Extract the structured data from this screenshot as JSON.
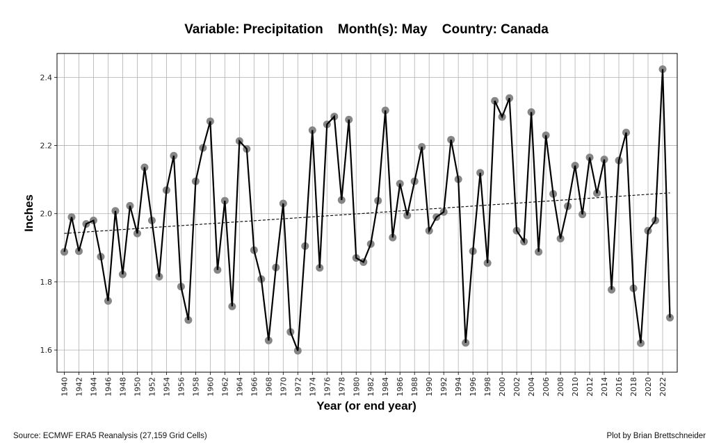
{
  "chart_data": {
    "type": "line",
    "title": "Variable: Precipitation    Month(s): May    Country: Canada",
    "xlabel": "Year (or end year)",
    "ylabel": "Inches",
    "xlim": [
      1939.0,
      2024.0
    ],
    "ylim": [
      1.535,
      2.47
    ],
    "grid": true,
    "legend": "none",
    "x_ticks": [
      1940,
      1942,
      1944,
      1946,
      1948,
      1950,
      1952,
      1954,
      1956,
      1958,
      1960,
      1962,
      1964,
      1966,
      1968,
      1970,
      1972,
      1974,
      1976,
      1978,
      1980,
      1982,
      1984,
      1986,
      1988,
      1990,
      1992,
      1994,
      1996,
      1998,
      2000,
      2002,
      2004,
      2006,
      2008,
      2010,
      2012,
      2014,
      2016,
      2018,
      2020,
      2022
    ],
    "x_tick_labels": [
      "1940",
      "1942",
      "1944",
      "1946",
      "1948",
      "1950",
      "1952",
      "1954",
      "1956",
      "1958",
      "1960",
      "1962",
      "1964",
      "1966",
      "1968",
      "1970",
      "1972",
      "1974",
      "1976",
      "1978",
      "1980",
      "1982",
      "1984",
      "1986",
      "1988",
      "1990",
      "1992",
      "1994",
      "1996",
      "1998",
      "2000",
      "2002",
      "2004",
      "2006",
      "2008",
      "2010",
      "2012",
      "2014",
      "2016",
      "2018",
      "2020",
      "2022"
    ],
    "y_ticks": [
      1.6,
      1.8,
      2.0,
      2.2,
      2.4
    ],
    "y_tick_labels": [
      "1.6",
      "1.8",
      "2.0",
      "2.2",
      "2.4"
    ],
    "x": [
      1940,
      1941,
      1942,
      1943,
      1944,
      1945,
      1946,
      1947,
      1948,
      1949,
      1950,
      1951,
      1952,
      1953,
      1954,
      1955,
      1956,
      1957,
      1958,
      1959,
      1960,
      1961,
      1962,
      1963,
      1964,
      1965,
      1966,
      1967,
      1968,
      1969,
      1970,
      1971,
      1972,
      1973,
      1974,
      1975,
      1976,
      1977,
      1978,
      1979,
      1980,
      1981,
      1982,
      1983,
      1984,
      1985,
      1986,
      1987,
      1988,
      1989,
      1990,
      1991,
      1992,
      1993,
      1994,
      1995,
      1996,
      1997,
      1998,
      1999,
      2000,
      2001,
      2002,
      2003,
      2004,
      2005,
      2006,
      2007,
      2008,
      2009,
      2010,
      2011,
      2012,
      2013,
      2014,
      2015,
      2016,
      2017,
      2018,
      2019,
      2020,
      2021,
      2022,
      2023
    ],
    "series": [
      {
        "name": "May Precipitation",
        "color": "#000000",
        "marker_color": "#808080",
        "values": [
          1.888,
          1.99,
          1.89,
          1.97,
          1.98,
          1.874,
          1.744,
          2.008,
          1.822,
          2.023,
          1.942,
          2.136,
          1.98,
          1.815,
          2.069,
          2.17,
          1.786,
          1.688,
          2.095,
          2.193,
          2.271,
          1.835,
          2.038,
          1.728,
          2.213,
          2.19,
          1.893,
          1.808,
          1.628,
          1.842,
          2.03,
          1.653,
          1.598,
          1.905,
          2.245,
          1.841,
          2.262,
          2.285,
          2.04,
          2.276,
          1.87,
          1.858,
          1.911,
          2.038,
          2.303,
          1.93,
          2.088,
          1.995,
          2.095,
          2.196,
          1.95,
          1.99,
          2.005,
          2.217,
          2.101,
          1.621,
          1.89,
          2.12,
          1.855,
          2.331,
          2.284,
          2.339,
          1.95,
          1.918,
          2.298,
          1.888,
          2.23,
          2.058,
          1.927,
          2.022,
          2.141,
          1.998,
          2.165,
          2.06,
          2.159,
          1.777,
          2.156,
          2.238,
          1.781,
          1.62,
          1.95,
          1.98,
          2.424,
          1.695
        ]
      }
    ],
    "trend": {
      "name": "Linear trend",
      "style": "dashed",
      "x": [
        1940,
        2023
      ],
      "y": [
        1.942,
        2.061
      ]
    },
    "annotations": {
      "source": "Source: ECMWF ERA5 Reanalysis (27,159 Grid Cells)",
      "credit": "Plot by Brian Brettschneider"
    }
  }
}
